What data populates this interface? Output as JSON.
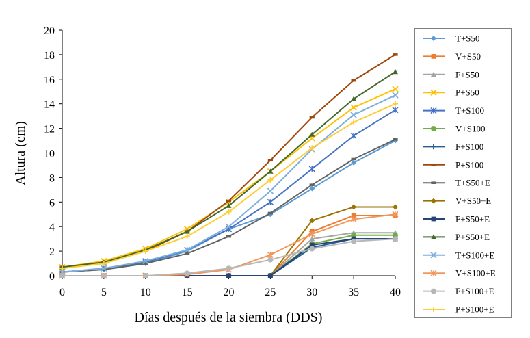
{
  "chart_data": {
    "type": "line",
    "xlabel": "Días después de la siembra (DDS)",
    "ylabel": "Altura (cm)",
    "xlim": [
      0,
      40
    ],
    "ylim": [
      0,
      20
    ],
    "x_ticks": [
      0,
      5,
      10,
      15,
      20,
      25,
      30,
      35,
      40
    ],
    "y_ticks": [
      0,
      2,
      4,
      6,
      8,
      10,
      12,
      14,
      16,
      18,
      20
    ],
    "x": [
      0,
      5,
      10,
      15,
      20,
      25,
      30,
      35,
      40
    ],
    "legend_position": "right",
    "grid": false,
    "series": [
      {
        "name": "T+S50",
        "color": "#5b9bd5",
        "marker": "diamond",
        "values": [
          0.3,
          0.5,
          1.0,
          2.0,
          3.8,
          5.0,
          7.1,
          9.2,
          11.0
        ]
      },
      {
        "name": "V+S50",
        "color": "#ed7d31",
        "marker": "square",
        "values": [
          0,
          0,
          0,
          0,
          0,
          0,
          3.6,
          4.9,
          4.9
        ]
      },
      {
        "name": "F+S50",
        "color": "#a5a5a5",
        "marker": "triangle",
        "values": [
          0,
          0,
          0,
          0,
          0,
          0,
          3.0,
          3.5,
          3.5
        ]
      },
      {
        "name": "P+S50",
        "color": "#ffc000",
        "marker": "x",
        "values": [
          0.7,
          1.2,
          2.2,
          3.8,
          6.0,
          8.5,
          11.2,
          13.7,
          15.2
        ]
      },
      {
        "name": "T+S100",
        "color": "#4472c4",
        "marker": "star",
        "values": [
          0.3,
          0.6,
          1.1,
          2.1,
          3.8,
          6.0,
          8.7,
          11.4,
          13.5
        ]
      },
      {
        "name": "V+S100",
        "color": "#70ad47",
        "marker": "circle",
        "values": [
          0,
          0,
          0,
          0,
          0,
          0,
          2.6,
          3.3,
          3.3
        ]
      },
      {
        "name": "F+S100",
        "color": "#255e91",
        "marker": "plus",
        "values": [
          0,
          0,
          0,
          0,
          0,
          0,
          2.3,
          3.0,
          3.0
        ]
      },
      {
        "name": "P+S100",
        "color": "#9e480e",
        "marker": "dash",
        "values": [
          0.7,
          1.1,
          2.0,
          3.6,
          6.1,
          9.4,
          12.9,
          15.9,
          18.0
        ]
      },
      {
        "name": "T+S50+E",
        "color": "#636363",
        "marker": "dash",
        "values": [
          0.3,
          0.5,
          1.0,
          1.8,
          3.2,
          5.1,
          7.4,
          9.5,
          11.1
        ]
      },
      {
        "name": "V+S50+E",
        "color": "#997300",
        "marker": "diamond",
        "values": [
          0,
          0,
          0,
          0,
          0,
          0,
          4.5,
          5.6,
          5.6
        ]
      },
      {
        "name": "F+S50+E",
        "color": "#264478",
        "marker": "square",
        "values": [
          0,
          0,
          0,
          0,
          0,
          0,
          2.5,
          3.0,
          3.0
        ]
      },
      {
        "name": "P+S50+E",
        "color": "#43682b",
        "marker": "triangle",
        "values": [
          0.7,
          1.1,
          2.1,
          3.6,
          5.7,
          8.5,
          11.5,
          14.4,
          16.6
        ]
      },
      {
        "name": "T+S100+E",
        "color": "#7cafdd",
        "marker": "x",
        "values": [
          0.3,
          0.6,
          1.2,
          2.1,
          4.0,
          6.9,
          10.3,
          13.1,
          14.7
        ]
      },
      {
        "name": "V+S100+E",
        "color": "#f1975a",
        "marker": "star",
        "values": [
          0,
          0,
          0,
          0.1,
          0.5,
          1.7,
          3.4,
          4.6,
          5.0
        ]
      },
      {
        "name": "F+S100+E",
        "color": "#b7b7b7",
        "marker": "circle",
        "values": [
          0,
          0,
          0,
          0.2,
          0.6,
          1.3,
          2.2,
          2.8,
          3.0
        ]
      },
      {
        "name": "P+S100+E",
        "color": "#ffcd33",
        "marker": "plus",
        "values": [
          0.6,
          1.0,
          2.0,
          3.2,
          5.2,
          7.8,
          10.4,
          12.5,
          14.0
        ]
      }
    ]
  }
}
